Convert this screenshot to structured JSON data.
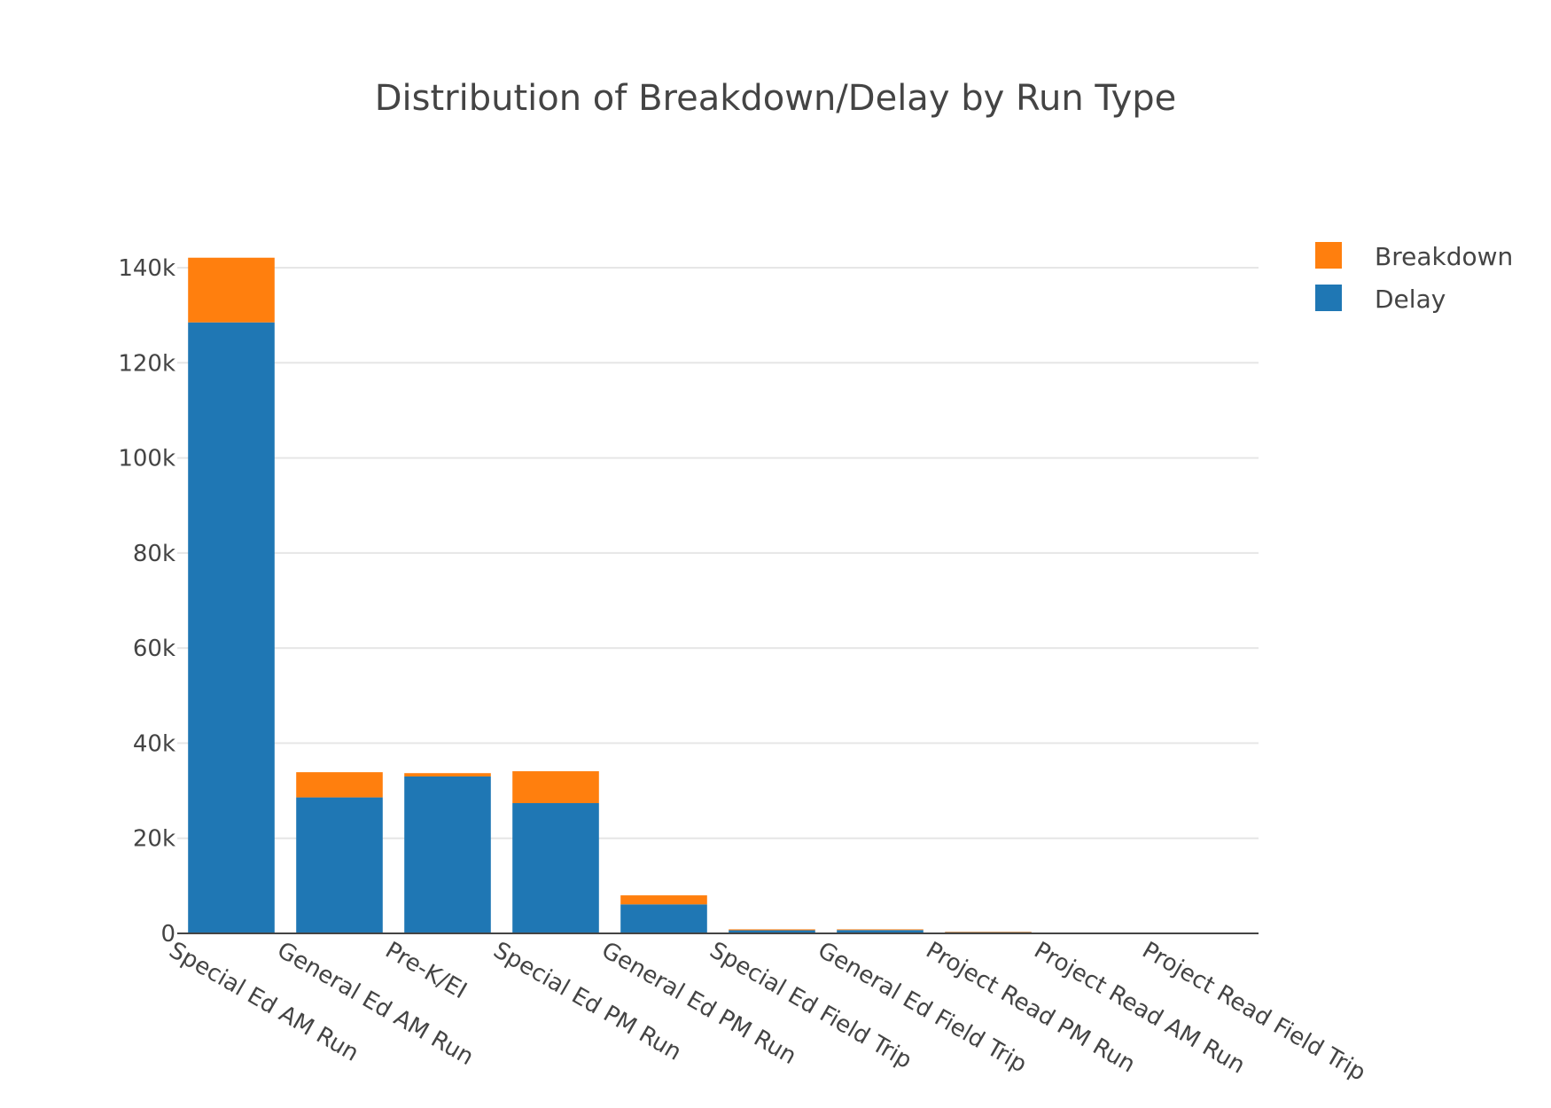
{
  "chart_data": {
    "type": "bar",
    "barmode": "stack",
    "title": "Distribution of Breakdown/Delay by Run Type",
    "xlabel": "",
    "ylabel": "",
    "categories": [
      "Special Ed AM Run",
      "General Ed AM Run",
      "Pre-K/EI",
      "Special Ed PM Run",
      "General Ed PM Run",
      "Special Ed Field Trip",
      "General Ed Field Trip",
      "Project Read PM Run",
      "Project Read AM Run",
      "Project Read Field Trip"
    ],
    "series": [
      {
        "name": "Delay",
        "color": "#1f77b4",
        "values": [
          128500,
          28600,
          33000,
          27400,
          6100,
          650,
          700,
          250,
          30,
          10
        ]
      },
      {
        "name": "Breakdown",
        "color": "#ff7f0e",
        "values": [
          13600,
          5300,
          700,
          6700,
          1900,
          200,
          150,
          100,
          10,
          5
        ]
      }
    ],
    "ylim": [
      0,
      150000
    ],
    "yticks": [
      0,
      20000,
      40000,
      60000,
      80000,
      100000,
      120000,
      140000
    ],
    "ytick_labels": [
      "0",
      "20k",
      "40k",
      "60k",
      "80k",
      "100k",
      "120k",
      "140k"
    ],
    "grid": true,
    "legend_position": "top-right",
    "legend_order": [
      "Breakdown",
      "Delay"
    ]
  }
}
